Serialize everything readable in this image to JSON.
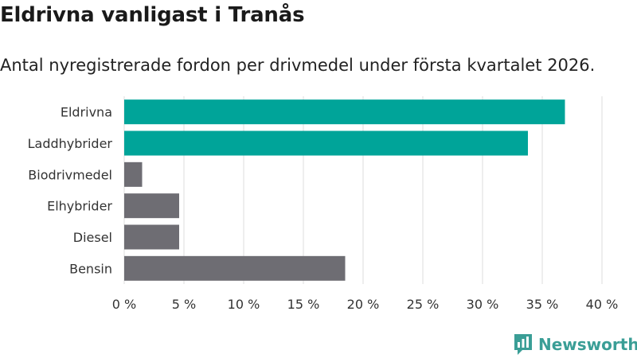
{
  "chart_data": {
    "type": "bar",
    "orientation": "horizontal",
    "title": "Eldrivna vanligast i Tranås",
    "subtitle": "Antal nyregistrerade fordon per drivmedel under första kvartalet 2026.",
    "categories": [
      "Eldrivna",
      "Laddhybrider",
      "Biodrivmedel",
      "Elhybrider",
      "Diesel",
      "Bensin"
    ],
    "values": [
      36.9,
      33.8,
      1.5,
      4.6,
      4.6,
      18.5
    ],
    "highlight": [
      true,
      true,
      false,
      false,
      false,
      false
    ],
    "xlabel": "",
    "ylabel": "",
    "xlim": [
      0,
      40
    ],
    "xticks": [
      0,
      5,
      10,
      15,
      20,
      25,
      30,
      35,
      40
    ],
    "tick_labels": [
      "0 %",
      "5 %",
      "10 %",
      "15 %",
      "20 %",
      "25 %",
      "30 %",
      "35 %",
      "40 %"
    ],
    "grid": true
  },
  "colors": {
    "highlight": "#00a499",
    "default": "#6e6d73",
    "grid": "#dddddd",
    "brand": "#3a9e96"
  },
  "brand": {
    "name": "Newsworthy",
    "icon": "newsworthy-logo-icon"
  }
}
